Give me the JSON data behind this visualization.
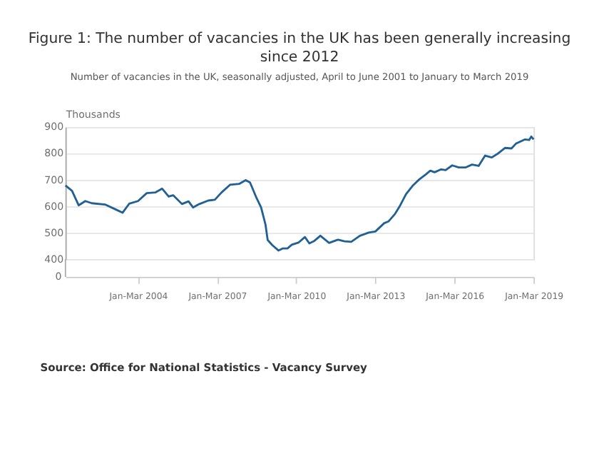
{
  "chart_data": {
    "type": "line",
    "title": "Figure 1: The number of vacancies in the UK has been generally increasing since 2012",
    "subtitle": "Number of vacancies in the UK, seasonally adjusted, April to June 2001 to January to March 2019",
    "ylabel": "Thousands",
    "annotations": [
      "0",
      "Source: Office for National Statistics - Vacancy Survey"
    ],
    "x": [
      "2001-04",
      "2001-07",
      "2001-10",
      "2002-01",
      "2002-04",
      "2002-10",
      "2003-03",
      "2003-06",
      "2003-09",
      "2004-01",
      "2004-05",
      "2004-09",
      "2004-12",
      "2005-03",
      "2005-05",
      "2005-09",
      "2005-12",
      "2006-02",
      "2006-05",
      "2006-09",
      "2006-12",
      "2007-03",
      "2007-07",
      "2007-11",
      "2008-02",
      "2008-04",
      "2008-07",
      "2008-09",
      "2008-11",
      "2008-12",
      "2009-02",
      "2009-05",
      "2009-07",
      "2009-09",
      "2009-11",
      "2010-02",
      "2010-05",
      "2010-07",
      "2010-09",
      "2010-12",
      "2011-04",
      "2011-08",
      "2011-11",
      "2012-02",
      "2012-06",
      "2012-10",
      "2013-01",
      "2013-05",
      "2013-07",
      "2013-10",
      "2013-12",
      "2014-03",
      "2014-06",
      "2014-09",
      "2014-12",
      "2015-02",
      "2015-04",
      "2015-07",
      "2015-09",
      "2015-12",
      "2016-03",
      "2016-06",
      "2016-09",
      "2016-12",
      "2017-03",
      "2017-06",
      "2017-09",
      "2017-12",
      "2018-03",
      "2018-05",
      "2018-09",
      "2018-11",
      "2018-12",
      "2019-01"
    ],
    "series": [
      {
        "color": "#206095",
        "values": [
          679,
          659,
          604,
          620,
          612,
          607,
          588,
          576,
          610,
          620,
          650,
          653,
          667,
          637,
          642,
          609,
          619,
          596,
          609,
          622,
          625,
          652,
          682,
          685,
          699,
          690,
          631,
          596,
          531,
          473,
          454,
          433,
          441,
          441,
          455,
          463,
          484,
          460,
          468,
          489,
          462,
          474,
          468,
          466,
          489,
          501,
          505,
          536,
          543,
          572,
          599,
          646,
          678,
          702,
          721,
          735,
          729,
          740,
          737,
          755,
          747,
          747,
          758,
          753,
          792,
          785,
          801,
          821,
          819,
          837,
          853,
          851,
          864,
          853
        ]
      }
    ],
    "xlim": [
      "2001-04",
      "2019-01"
    ],
    "xticks": [
      {
        "value": "2004-01",
        "label": "Jan-Mar 2004"
      },
      {
        "value": "2007-01",
        "label": "Jan-Mar 2007"
      },
      {
        "value": "2010-01",
        "label": "Jan-Mar 2010"
      },
      {
        "value": "2013-01",
        "label": "Jan-Mar 2013"
      },
      {
        "value": "2016-01",
        "label": "Jan-Mar 2016"
      },
      {
        "value": "2019-01",
        "label": "Jan-Mar 2019"
      }
    ],
    "ylim": [
      400,
      900
    ],
    "yticks": [
      400,
      500,
      600,
      700,
      800,
      900
    ],
    "grid": "y",
    "legend": false,
    "line_style": "solid",
    "marker": "none"
  }
}
